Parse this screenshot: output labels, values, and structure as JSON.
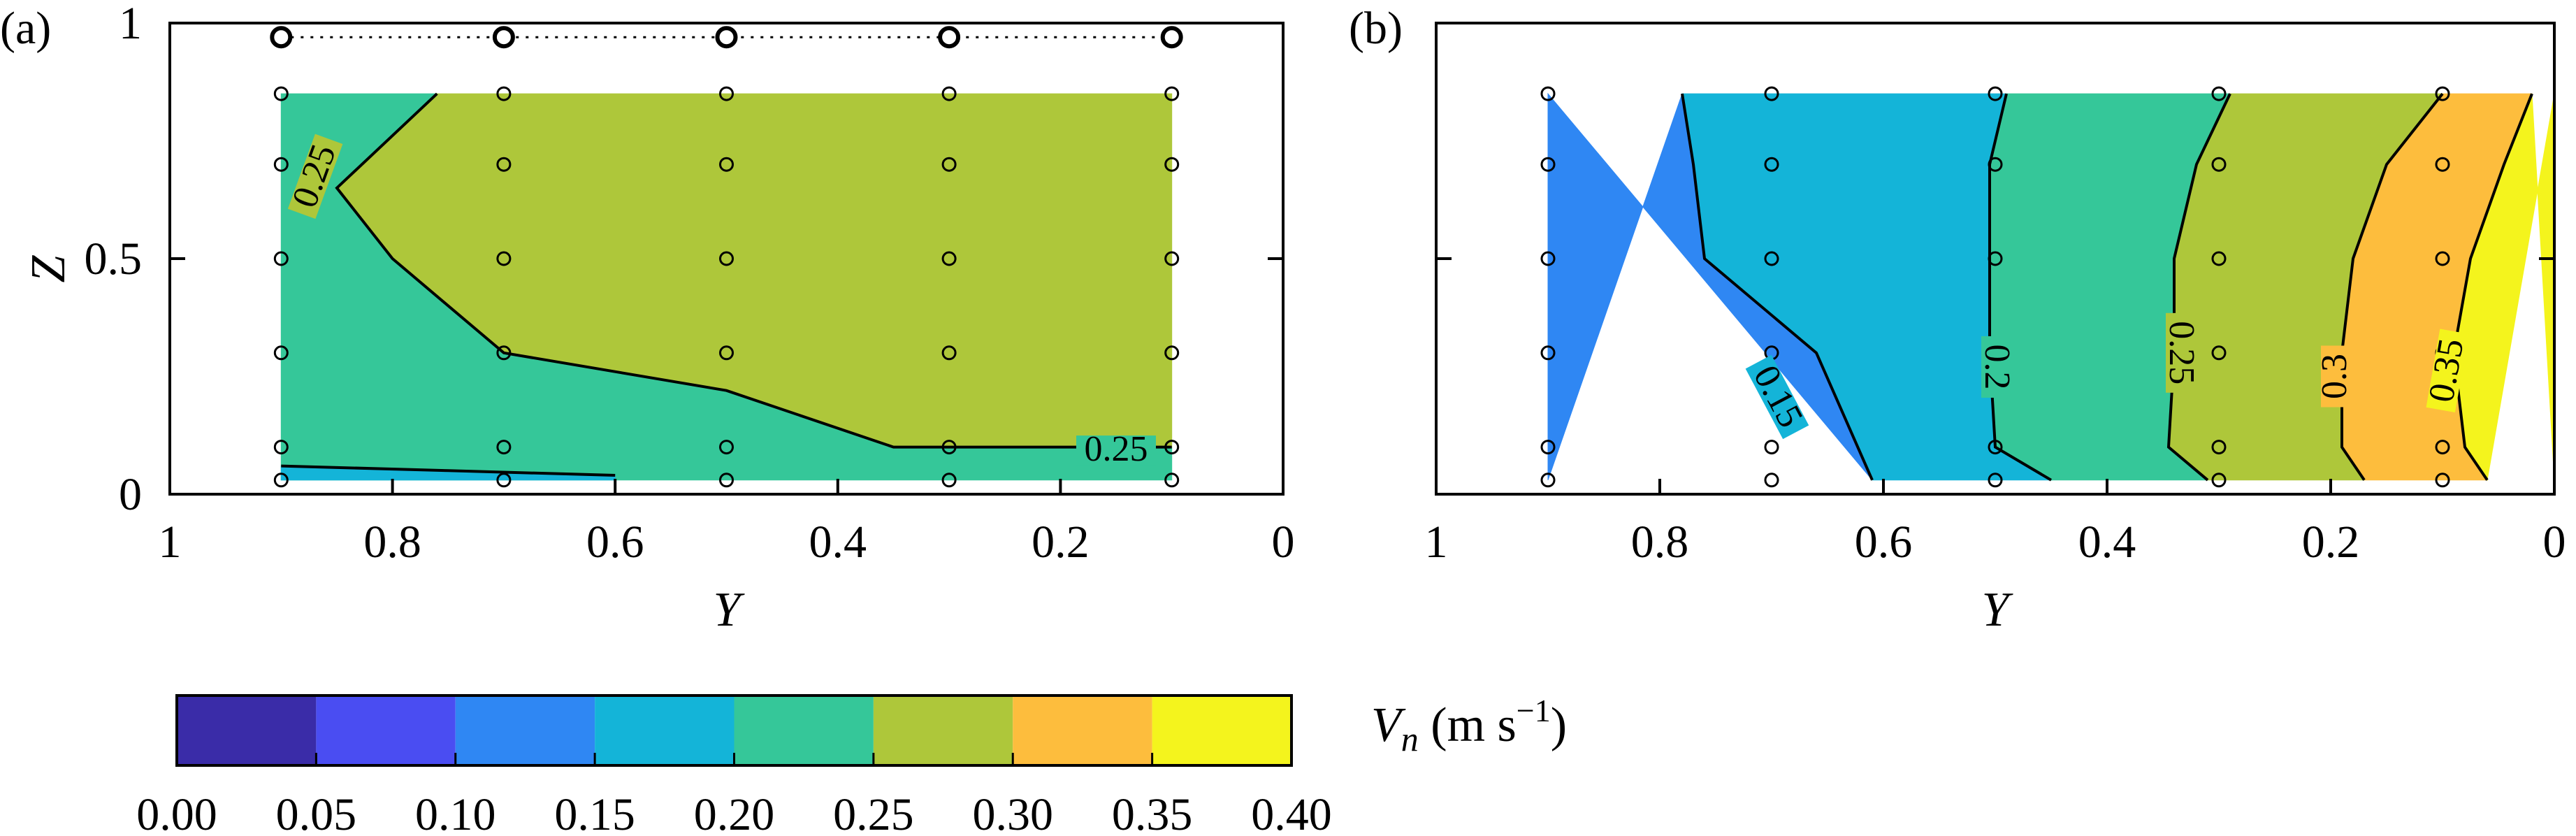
{
  "figure": {
    "panel_a_label": "(a)",
    "panel_b_label": "(b)",
    "colorbar_title_var": "V",
    "colorbar_title_sub": "n",
    "colorbar_title_unit": " (m s",
    "colorbar_title_exp": "−1",
    "colorbar_title_close": ")"
  },
  "chart_data": [
    {
      "panel": "a",
      "type": "contour",
      "xlabel": "Y",
      "ylabel": "Z",
      "xlim": [
        1,
        0
      ],
      "ylim": [
        0,
        1
      ],
      "xticks": [
        1,
        0.8,
        0.6,
        0.4,
        0.2,
        0
      ],
      "xtick_labels": [
        "1",
        "0.8",
        "0.6",
        "0.4",
        "0.2",
        "0"
      ],
      "yticks": [
        0,
        0.5,
        1
      ],
      "ytick_labels": [
        "0",
        "0.5",
        "1"
      ],
      "data_region": {
        "y": [
          0.9,
          0.1
        ],
        "z": [
          0.03,
          0.85
        ]
      },
      "measurement_y": [
        0.9,
        0.7,
        0.5,
        0.3,
        0.1
      ],
      "measurement_z": [
        0.03,
        0.1,
        0.3,
        0.5,
        0.7,
        0.85
      ],
      "surface_points_z": 0.97,
      "regions": [
        {
          "range": "0.20-0.25",
          "polygon": [
            [
              0.9,
              0.03
            ],
            [
              0.1,
              0.03
            ],
            [
              0.1,
              0.1
            ],
            [
              0.2,
              0.1
            ],
            [
              0.35,
              0.1
            ],
            [
              0.5,
              0.22
            ],
            [
              0.7,
              0.3
            ],
            [
              0.8,
              0.5
            ],
            [
              0.85,
              0.65
            ],
            [
              0.76,
              0.85
            ],
            [
              0.9,
              0.85
            ]
          ]
        },
        {
          "range": "0.25-0.30",
          "polygon": [
            [
              0.76,
              0.85
            ],
            [
              0.85,
              0.65
            ],
            [
              0.8,
              0.5
            ],
            [
              0.7,
              0.3
            ],
            [
              0.5,
              0.22
            ],
            [
              0.35,
              0.1
            ],
            [
              0.2,
              0.1
            ],
            [
              0.1,
              0.1
            ],
            [
              0.1,
              0.85
            ]
          ]
        },
        {
          "range": "0.15-0.20",
          "polygon": [
            [
              0.9,
              0.03
            ],
            [
              0.6,
              0.03
            ],
            [
              0.6,
              0.04
            ],
            [
              0.75,
              0.05
            ],
            [
              0.9,
              0.06
            ]
          ]
        }
      ],
      "contours": [
        {
          "level": 0.25,
          "points": [
            [
              0.76,
              0.85
            ],
            [
              0.85,
              0.65
            ],
            [
              0.8,
              0.5
            ],
            [
              0.7,
              0.3
            ],
            [
              0.5,
              0.22
            ],
            [
              0.35,
              0.1
            ],
            [
              0.2,
              0.1
            ],
            [
              0.1,
              0.1
            ]
          ]
        },
        {
          "level": 0.2,
          "points": [
            [
              0.9,
              0.06
            ],
            [
              0.75,
              0.05
            ],
            [
              0.6,
              0.04
            ]
          ]
        }
      ],
      "contour_labels": [
        {
          "text": "0.25",
          "y": 0.864,
          "z": 0.67,
          "angle": -70
        },
        {
          "text": "0.25",
          "y": 0.15,
          "z": 0.08,
          "angle": 0
        }
      ]
    },
    {
      "panel": "b",
      "type": "contour",
      "xlabel": "Y",
      "ylabel": "",
      "xlim": [
        1,
        0
      ],
      "ylim": [
        0,
        1
      ],
      "xticks": [
        1,
        0.8,
        0.6,
        0.4,
        0.2,
        0
      ],
      "xtick_labels": [
        "1",
        "0.8",
        "0.6",
        "0.4",
        "0.2",
        "0"
      ],
      "yticks": [
        0,
        0.5,
        1
      ],
      "data_region": {
        "y": [
          0.9,
          0.0
        ],
        "z": [
          0.03,
          0.85
        ]
      },
      "measurement_y": [
        0.9,
        0.7,
        0.5,
        0.3,
        0.1
      ],
      "measurement_z": [
        0.03,
        0.1,
        0.3,
        0.5,
        0.7,
        0.85
      ],
      "contours": [
        {
          "level": 0.15,
          "points": [
            [
              0.78,
              0.85
            ],
            [
              0.77,
              0.7
            ],
            [
              0.76,
              0.5
            ],
            [
              0.66,
              0.3
            ],
            [
              0.61,
              0.03
            ]
          ]
        },
        {
          "level": 0.2,
          "points": [
            [
              0.49,
              0.85
            ],
            [
              0.505,
              0.7
            ],
            [
              0.505,
              0.3
            ],
            [
              0.5,
              0.1
            ],
            [
              0.45,
              0.03
            ]
          ]
        },
        {
          "level": 0.25,
          "points": [
            [
              0.29,
              0.85
            ],
            [
              0.32,
              0.7
            ],
            [
              0.34,
              0.5
            ],
            [
              0.34,
              0.3
            ],
            [
              0.345,
              0.1
            ],
            [
              0.31,
              0.03
            ]
          ]
        },
        {
          "level": 0.3,
          "points": [
            [
              0.1,
              0.85
            ],
            [
              0.15,
              0.7
            ],
            [
              0.18,
              0.5
            ],
            [
              0.19,
              0.3
            ],
            [
              0.19,
              0.1
            ],
            [
              0.17,
              0.03
            ]
          ]
        },
        {
          "level": 0.35,
          "points": [
            [
              0.02,
              0.85
            ],
            [
              0.045,
              0.7
            ],
            [
              0.075,
              0.5
            ],
            [
              0.09,
              0.3
            ],
            [
              0.08,
              0.1
            ],
            [
              0.06,
              0.03
            ]
          ]
        }
      ],
      "bands": [
        {
          "range": "0.10-0.15",
          "left": "edge",
          "right_contour": 0
        },
        {
          "range": "0.15-0.20",
          "left_contour": 0,
          "right_contour": 1
        },
        {
          "range": "0.20-0.25",
          "left_contour": 1,
          "right_contour": 2
        },
        {
          "range": "0.25-0.30",
          "left_contour": 2,
          "right_contour": 3
        },
        {
          "range": "0.30-0.35",
          "left_contour": 3,
          "right_contour": 4
        },
        {
          "range": "0.35-0.40",
          "left_contour": 4,
          "right": "edge"
        }
      ],
      "contour_labels": [
        {
          "text": "0.15",
          "y": 0.7,
          "z": 0.2,
          "angle": 62
        },
        {
          "text": "0.2",
          "y": 0.505,
          "z": 0.27,
          "angle": 90
        },
        {
          "text": "0.25",
          "y": 0.34,
          "z": 0.3,
          "angle": 90
        },
        {
          "text": "0.3",
          "y": 0.19,
          "z": 0.25,
          "angle": -90
        },
        {
          "text": "0.35",
          "y": 0.09,
          "z": 0.26,
          "angle": -80
        }
      ]
    },
    {
      "type": "colorbar",
      "levels": [
        0.0,
        0.05,
        0.1,
        0.15,
        0.2,
        0.25,
        0.3,
        0.35,
        0.4
      ],
      "tick_labels": [
        "0.00",
        "0.05",
        "0.10",
        "0.15",
        "0.20",
        "0.25",
        "0.30",
        "0.35",
        "0.40"
      ],
      "colors": [
        "#3a2ca8",
        "#4a4df2",
        "#2f87f3",
        "#14b4d8",
        "#35c799",
        "#aec73a",
        "#fdbd3d",
        "#f4f41d"
      ]
    }
  ],
  "colors": {
    "c0.00-0.05": "#3a2ca8",
    "c0.05-0.10": "#4a4df2",
    "c0.10-0.15": "#2f87f3",
    "c0.15-0.20": "#14b4d8",
    "c0.20-0.25": "#35c799",
    "c0.25-0.30": "#aec73a",
    "c0.30-0.35": "#fdbd3d",
    "c0.35-0.40": "#f4f41d"
  }
}
